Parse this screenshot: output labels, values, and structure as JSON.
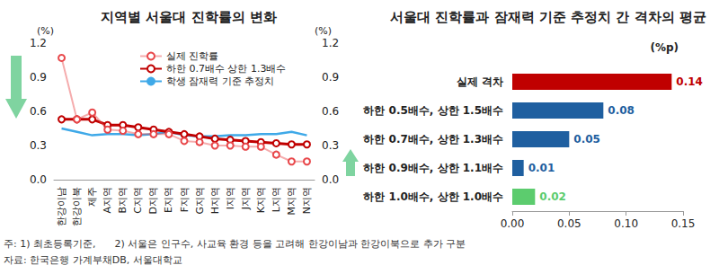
{
  "chart_data": [
    {
      "type": "line",
      "title": "지역별 서울대 진학률의 변화",
      "categories": [
        "한강이남",
        "한강이북",
        "제주",
        "A지역",
        "B지역",
        "C지역",
        "D지역",
        "E지역",
        "F지역",
        "G지역",
        "H지역",
        "I지역",
        "J지역",
        "K지역",
        "L지역",
        "M지역",
        "N지역"
      ],
      "series": [
        {
          "name": "실제 진학률",
          "color": "#e8474a",
          "marker": "empty_circle",
          "line_style": "solid",
          "values": [
            1.07,
            0.53,
            0.59,
            0.44,
            0.43,
            0.4,
            0.4,
            0.4,
            0.34,
            0.33,
            0.3,
            0.3,
            0.29,
            0.29,
            0.22,
            0.16,
            0.16
          ]
        },
        {
          "name": "하한 0.7배수 상한 1.3배수",
          "color": "#c00000",
          "marker": "empty_circle",
          "line_style": "solid",
          "values": [
            0.53,
            0.53,
            0.53,
            0.48,
            0.48,
            0.46,
            0.44,
            0.42,
            0.4,
            0.38,
            0.36,
            0.35,
            0.34,
            0.33,
            0.32,
            0.31,
            0.31
          ]
        },
        {
          "name": "학생 잠재력 기준 추정치",
          "color": "#3fa9e8",
          "marker": "none",
          "line_style": "solid",
          "values": [
            0.45,
            0.42,
            0.39,
            0.4,
            0.4,
            0.39,
            0.4,
            0.42,
            0.39,
            0.38,
            0.38,
            0.39,
            0.39,
            0.4,
            0.4,
            0.42,
            0.39
          ]
        }
      ],
      "ylabel": "(%)",
      "ylim": [
        0,
        1.2
      ],
      "yticks": [
        {
          "value": 0,
          "label": "0.0"
        },
        {
          "value": 0.3,
          "label": "0.3"
        },
        {
          "value": 0.6,
          "label": "0.6"
        },
        {
          "value": 0.9,
          "label": "0.9"
        },
        {
          "value": 1.2,
          "label": "1.2"
        }
      ],
      "y2label": "(%)",
      "y2lim": [
        0,
        1.2
      ],
      "y2ticks": [
        {
          "value": 0,
          "label": "0.0"
        },
        {
          "value": 0.3,
          "label": "0.3"
        },
        {
          "value": 0.6,
          "label": "0.6"
        },
        {
          "value": 0.9,
          "label": "0.9"
        },
        {
          "value": 1.2,
          "label": "1.2"
        }
      ],
      "legend": "upper right",
      "grid": false
    },
    {
      "type": "bar",
      "title": "서울대 진학률과 잠재력 기준 추정치 간 격차의 평균",
      "orientation": "horizontal",
      "categories": [
        "실제 격차",
        "하한 0.5배수, 상한 1.5배수",
        "하한 0.7배수, 상한 1.3배수",
        "하한 0.9배수, 상한 1.1배수",
        "하한 1.0배수, 상한 1.0배수"
      ],
      "values": [
        0.14,
        0.08,
        0.05,
        0.01,
        0.02
      ],
      "colors": [
        "#c00000",
        "#1f5fa0",
        "#1f5fa0",
        "#1f5fa0",
        "#5ccc6e"
      ],
      "xlabel": "(%p)",
      "xlim": [
        0,
        0.15
      ],
      "xticks": [
        {
          "value": 0,
          "label": "0.00"
        },
        {
          "value": 0.05,
          "label": "0.05"
        },
        {
          "value": 0.1,
          "label": "0.10"
        },
        {
          "value": 0.15,
          "label": "0.15"
        }
      ],
      "data_labels": true,
      "grid": false
    }
  ],
  "notes": [
    "주: 1) 최초등록기준,      2) 서울은 인구수, 사교육 환경 등을 고려해 한강이남과 한강이북으로 추가 구분",
    "자료: 한국은행 가계부채DB, 서울대학교"
  ]
}
